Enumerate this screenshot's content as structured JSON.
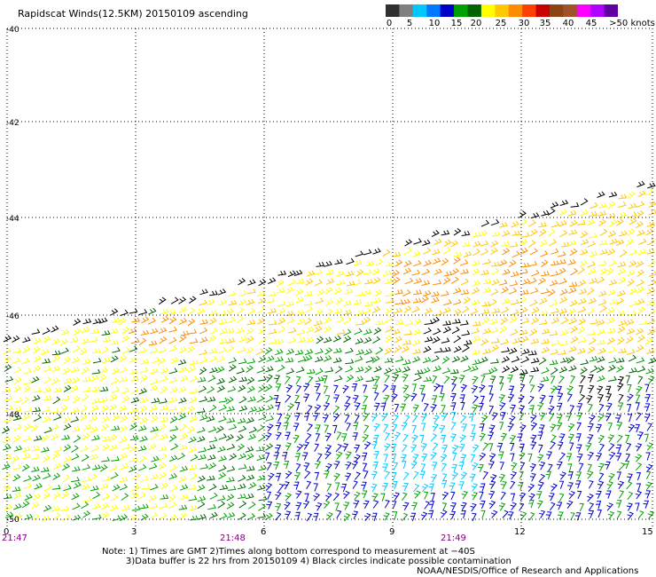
{
  "title": "Rapidscat Winds(12.5KM) 20150109 ascending",
  "color_scale": {
    "labels": [
      "0",
      "5",
      "10",
      "15",
      "20",
      "25",
      "30",
      "35",
      "40",
      "45",
      ">50 knots"
    ],
    "colors": [
      "#303030",
      "#808080",
      "#00c8ff",
      "#0078ff",
      "#0000c8",
      "#00a000",
      "#006400",
      "#ffff00",
      "#ffc800",
      "#ff8c00",
      "#ff4000",
      "#c80000",
      "#8b4513",
      "#a0522d",
      "#ff00ff",
      "#b000ff",
      "#6000a0"
    ]
  },
  "latitude_labels": [
    "-40",
    "-42",
    "-44",
    "-46",
    "-48",
    "-50"
  ],
  "longitude_labels": [
    "0",
    "3",
    "6",
    "9",
    "12",
    "15"
  ],
  "time_labels": [
    "21:47",
    "21:48",
    "21:49"
  ],
  "notes": {
    "line1": "Note: 1) Times are GMT 2)Times along bottom correspond to measurement at −40S",
    "line2": "3)Data buffer is 22 hrs from 20150109 4) Black circles indicate possible contamination"
  },
  "credit": "NOAA/NESDIS/Office of Research and Applications",
  "legend_colors": {
    "light": "#ffff00",
    "moderate": "#ffc800",
    "strong": "#ff8c00",
    "calm_green": "#00a000",
    "dark_green": "#006400",
    "blue": "#0000c8",
    "cyan": "#00c8ff",
    "flag": "#000000"
  }
}
